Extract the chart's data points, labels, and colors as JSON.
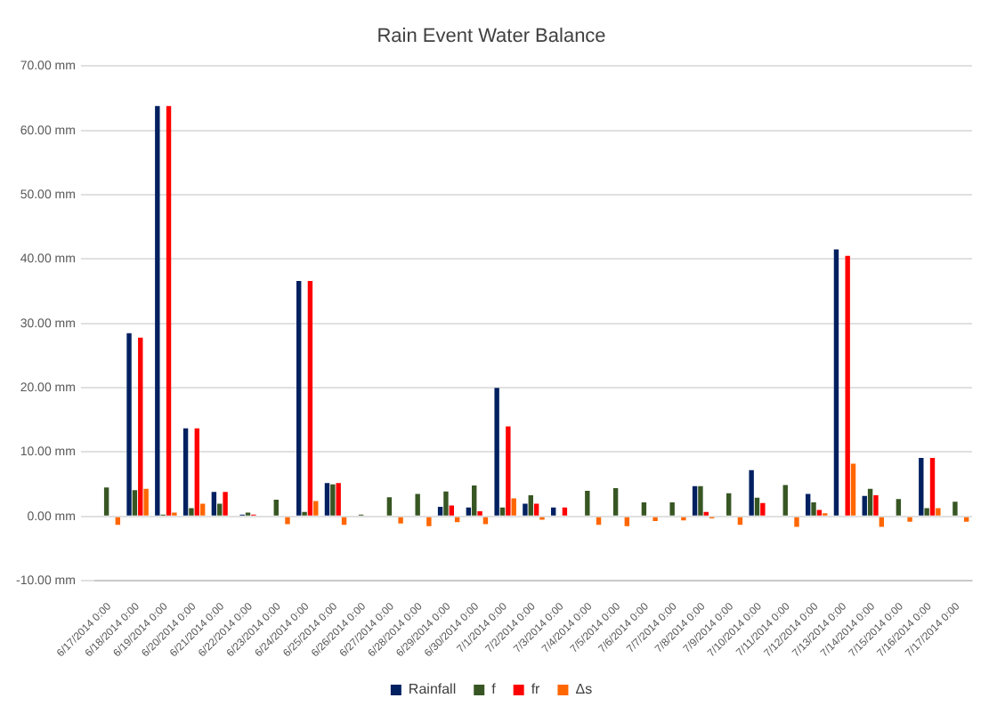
{
  "chart_data": {
    "type": "bar",
    "title": "Rain Event Water Balance",
    "categories": [
      "6/17/2014 0:00",
      "6/18/2014 0:00",
      "6/19/2014 0:00",
      "6/20/2014 0:00",
      "6/21/2014 0:00",
      "6/22/2014 0:00",
      "6/23/2014 0:00",
      "6/24/2014 0:00",
      "6/25/2014 0:00",
      "6/26/2014 0:00",
      "6/27/2014 0:00",
      "6/28/2014 0:00",
      "6/29/2014 0:00",
      "6/30/2014 0:00",
      "7/1/2014 0:00",
      "7/2/2014 0:00",
      "7/3/2014 0:00",
      "7/4/2014 0:00",
      "7/5/2014 0:00",
      "7/6/2014 0:00",
      "7/7/2014 0:00",
      "7/8/2014 0:00",
      "7/9/2014 0:00",
      "7/10/2014 0:00",
      "7/11/2014 0:00",
      "7/12/2014 0:00",
      "7/13/2014 0:00",
      "7/14/2014 0:00",
      "7/15/2014 0:00",
      "7/16/2014 0:00",
      "7/17/2014 0:00"
    ],
    "series": [
      {
        "name": "Rainfall",
        "color": "#002060",
        "values": [
          0,
          28.5,
          63.8,
          13.7,
          3.8,
          0.3,
          0,
          36.6,
          5.2,
          0,
          0,
          0,
          1.5,
          1.4,
          20.0,
          2.0,
          1.4,
          0,
          0,
          0,
          0,
          4.7,
          0,
          7.2,
          0,
          3.5,
          41.5,
          3.2,
          0,
          9.1,
          0
        ]
      },
      {
        "name": "f",
        "color": "#375623",
        "values": [
          4.5,
          4.1,
          0.3,
          1.3,
          2.0,
          0.6,
          2.6,
          0.7,
          5.0,
          0.3,
          3.0,
          3.5,
          3.9,
          4.8,
          1.4,
          3.3,
          null,
          4.0,
          4.4,
          2.2,
          2.2,
          4.7,
          3.6,
          2.9,
          4.9,
          2.2,
          0,
          4.3,
          2.7,
          1.3,
          2.3
        ]
      },
      {
        "name": "fr",
        "color": "#ff0000",
        "values": [
          0,
          27.8,
          63.8,
          13.7,
          3.8,
          0.3,
          0,
          36.6,
          5.2,
          0,
          0,
          0,
          1.7,
          0.8,
          14.0,
          2.0,
          1.4,
          0,
          0,
          0,
          0,
          0.7,
          0,
          2.1,
          0,
          1.0,
          40.5,
          3.3,
          0,
          9.1,
          0
        ]
      },
      {
        "name": "Δs",
        "color": "#ff6600",
        "values": [
          -1.3,
          4.3,
          0.6,
          2.0,
          null,
          null,
          -1.2,
          2.4,
          -1.3,
          null,
          -1.1,
          -1.5,
          -0.9,
          -1.2,
          2.8,
          -0.5,
          0,
          -1.3,
          -1.5,
          -0.7,
          -0.6,
          -0.3,
          -1.3,
          0,
          -1.6,
          0.5,
          8.2,
          -1.6,
          -0.8,
          1.3,
          -0.8
        ]
      }
    ],
    "ylim": [
      -10,
      70
    ],
    "yticks": [
      {
        "value": -10,
        "label": "-10.00 mm"
      },
      {
        "value": 0,
        "label": "0.00 mm"
      },
      {
        "value": 10,
        "label": "10.00 mm"
      },
      {
        "value": 20,
        "label": "20.00 mm"
      },
      {
        "value": 30,
        "label": "30.00 mm"
      },
      {
        "value": 40,
        "label": "40.00 mm"
      },
      {
        "value": 50,
        "label": "50.00 mm"
      },
      {
        "value": 60,
        "label": "60.00 mm"
      },
      {
        "value": 70,
        "label": "70.00 mm"
      }
    ],
    "grid": "y",
    "legend": "bottom"
  }
}
